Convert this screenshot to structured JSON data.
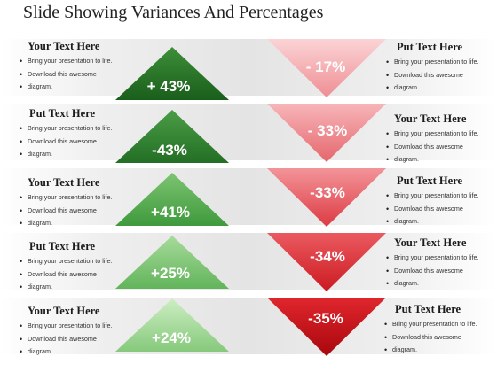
{
  "title": "Slide Showing Variances And Percentages",
  "bullets": [
    "Bring your presentation to life.",
    "Download this awesome diagram."
  ],
  "left_rows": [
    {
      "heading": "Your Text Here",
      "value": "+ 43%",
      "color": "#1f6b20"
    },
    {
      "heading": "Put Text Here",
      "value": "-43%",
      "color": "#2e7f2c"
    },
    {
      "heading": "Your Text Here",
      "value": "+41%",
      "color": "#58a84f"
    },
    {
      "heading": "Put Text Here",
      "value": "+25%",
      "color": "#84c778"
    },
    {
      "heading": "Your Text Here",
      "value": "+24%",
      "color": "#a7dc9b"
    }
  ],
  "right_rows": [
    {
      "heading": "Put Text Here",
      "value": "- 17%",
      "color": "#f3a0a4"
    },
    {
      "heading": "Your Text Here",
      "value": "- 33%",
      "color": "#ee7f84"
    },
    {
      "heading": "Put Text Here",
      "value": "-33%",
      "color": "#e6565c"
    },
    {
      "heading": "Your Text Here",
      "value": "-34%",
      "color": "#dc2a30"
    },
    {
      "heading": "Put Text Here",
      "value": "-35%",
      "color": "#c40b12"
    }
  ]
}
